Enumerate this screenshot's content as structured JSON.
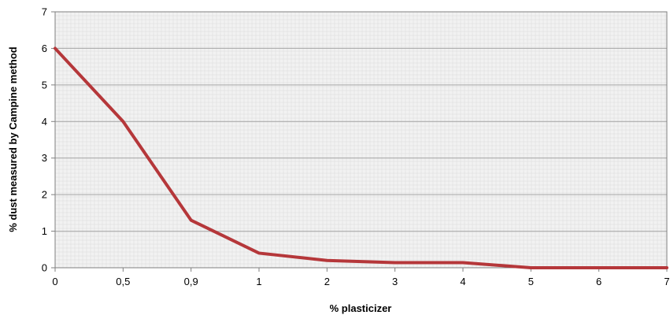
{
  "chart_data": {
    "type": "line",
    "title": "",
    "xlabel": "% plasticizer",
    "ylabel": "% dust measured by Campine method",
    "x_scale": "categorical",
    "categories": [
      "0",
      "0,5",
      "0,9",
      "1",
      "2",
      "3",
      "4",
      "5",
      "6",
      "7"
    ],
    "series": [
      {
        "values": [
          6,
          4,
          1.3,
          0.4,
          0.2,
          0.14,
          0.14,
          0,
          0,
          0
        ]
      }
    ],
    "ylim": [
      0,
      7
    ],
    "y_ticks": [
      "0",
      "1",
      "2",
      "3",
      "4",
      "5",
      "6",
      "7"
    ],
    "grid": true,
    "legend": "none",
    "colors": {
      "line": "#b5373a",
      "plot_background": "#f2f2f2",
      "major_grid": "#a6a6a6",
      "minor_grid": "#d9d9d9",
      "axis": "#7f7f7f"
    }
  }
}
